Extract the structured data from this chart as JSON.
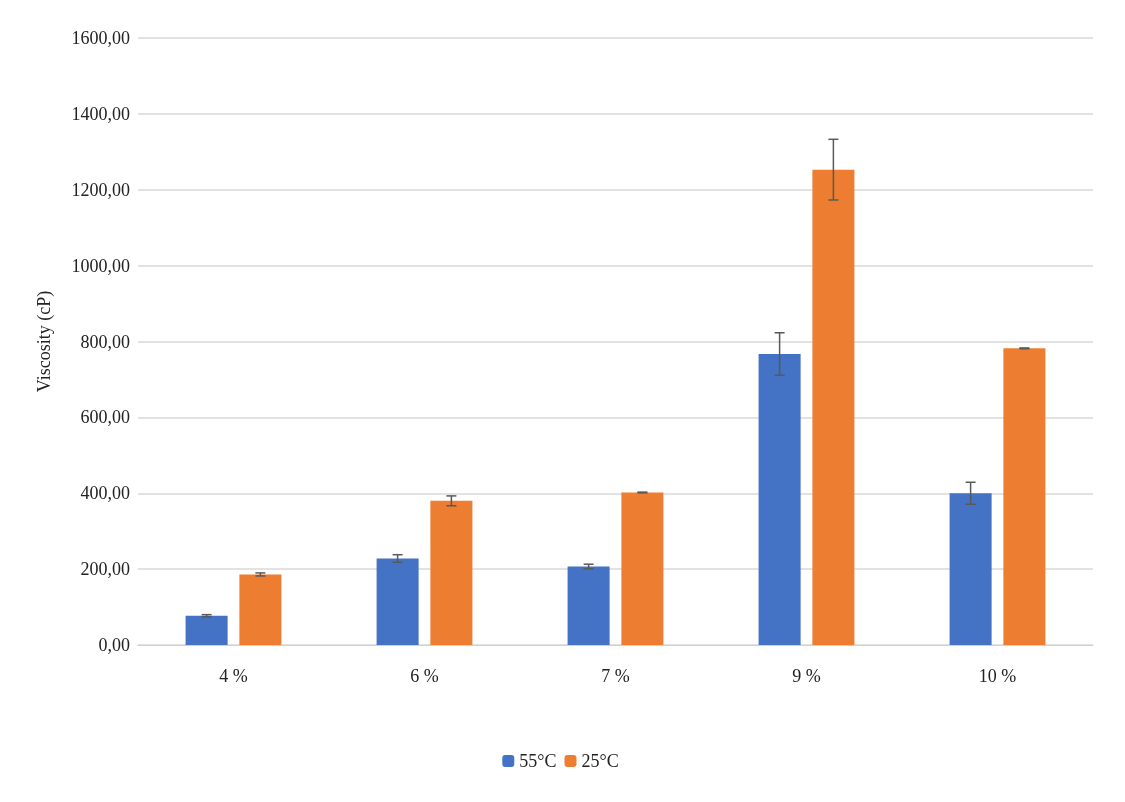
{
  "chart_data": {
    "type": "bar",
    "ylabel": "Viscosity (cP)",
    "categories": [
      "4 %",
      "6 %",
      "7 %",
      "9 %",
      "10 %"
    ],
    "series": [
      {
        "name": "55°C",
        "color": "#4472c4",
        "values": [
          77,
          228,
          207,
          767,
          400
        ],
        "errors": [
          3,
          10,
          6,
          56,
          29
        ]
      },
      {
        "name": "25°C",
        "color": "#ed7d31",
        "values": [
          186,
          380,
          402,
          1253,
          782
        ],
        "errors": [
          4,
          13,
          1,
          80,
          1
        ]
      }
    ],
    "ylim": [
      0,
      1600
    ],
    "yticks": [
      {
        "value": 0,
        "label": "0,00"
      },
      {
        "value": 200,
        "label": "200,00"
      },
      {
        "value": 400,
        "label": "400,00"
      },
      {
        "value": 600,
        "label": "600,00"
      },
      {
        "value": 800,
        "label": "800,00"
      },
      {
        "value": 1000,
        "label": "1000,00"
      },
      {
        "value": 1200,
        "label": "1200,00"
      },
      {
        "value": 1400,
        "label": "1400,00"
      },
      {
        "value": 1600,
        "label": "1600,00"
      }
    ],
    "grid": "y",
    "legend": "bottom"
  }
}
